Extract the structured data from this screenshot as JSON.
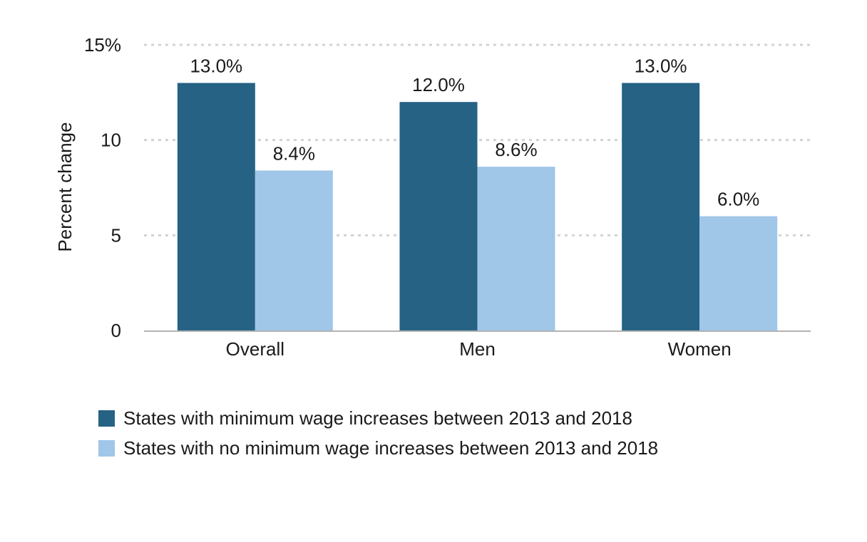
{
  "chart_data": {
    "type": "bar",
    "categories": [
      "Overall",
      "Men",
      "Women"
    ],
    "series": [
      {
        "name": "States with minimum wage increases between 2013 and 2018",
        "values": [
          13.0,
          12.0,
          13.0
        ],
        "labels": [
          "13.0%",
          "12.0%",
          "13.0%"
        ],
        "color": "#256284"
      },
      {
        "name": "States with no minimum wage increases between 2013 and 2018",
        "values": [
          8.4,
          8.6,
          6.0
        ],
        "labels": [
          "8.4%",
          "8.6%",
          "6.0%"
        ],
        "color": "#a0c6e8"
      }
    ],
    "ylabel": "Percent change",
    "ylim": [
      0,
      15
    ],
    "yticks": [
      0,
      5,
      10,
      15
    ],
    "ytick_labels": [
      "0",
      "5",
      "10",
      "15%"
    ],
    "grid": true,
    "legend_position": "bottom-left"
  }
}
